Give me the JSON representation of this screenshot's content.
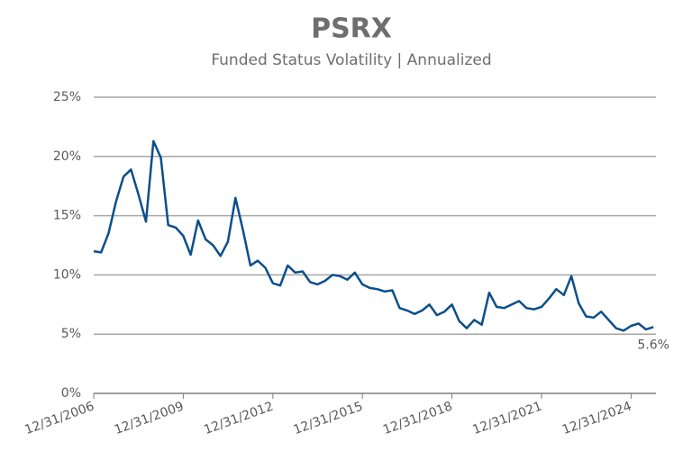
{
  "chart_data": {
    "type": "line",
    "title": "PSRX",
    "subtitle": "Funded Status Volatility | Annualized",
    "x": [
      "12/31/2006",
      "3/31/2007",
      "6/30/2007",
      "9/30/2007",
      "12/31/2007",
      "3/31/2008",
      "6/30/2008",
      "9/30/2008",
      "12/31/2008",
      "3/31/2009",
      "6/30/2009",
      "9/30/2009",
      "12/31/2009",
      "3/31/2010",
      "6/30/2010",
      "9/30/2010",
      "12/31/2010",
      "3/31/2011",
      "6/30/2011",
      "9/30/2011",
      "12/31/2011",
      "3/31/2012",
      "6/30/2012",
      "9/30/2012",
      "12/31/2012",
      "3/31/2013",
      "6/30/2013",
      "9/30/2013",
      "12/31/2013",
      "3/31/2014",
      "6/30/2014",
      "9/30/2014",
      "12/31/2014",
      "3/31/2015",
      "6/30/2015",
      "9/30/2015",
      "12/31/2015",
      "3/31/2016",
      "6/30/2016",
      "9/30/2016",
      "12/31/2016",
      "3/31/2017",
      "6/30/2017",
      "9/30/2017",
      "12/31/2017",
      "3/31/2018",
      "6/30/2018",
      "9/30/2018",
      "12/31/2018",
      "3/31/2019",
      "6/30/2019",
      "9/30/2019",
      "12/31/2019",
      "3/31/2020",
      "6/30/2020",
      "9/30/2020",
      "12/31/2020",
      "3/31/2021",
      "6/30/2021",
      "9/30/2021",
      "12/31/2021",
      "3/31/2022",
      "6/30/2022",
      "9/30/2022",
      "12/31/2022",
      "3/31/2023",
      "6/30/2023",
      "9/30/2023",
      "12/31/2023",
      "3/31/2024",
      "6/30/2024",
      "9/30/2024",
      "12/31/2024",
      "3/31/2025",
      "6/30/2025",
      "9/30/2025"
    ],
    "series": [
      {
        "name": "PSRX",
        "color": "#0b4f8a",
        "values": [
          12.0,
          11.9,
          13.5,
          16.2,
          18.3,
          18.9,
          16.8,
          14.5,
          21.3,
          19.9,
          14.2,
          14.0,
          13.3,
          11.7,
          14.6,
          13.0,
          12.5,
          11.6,
          12.8,
          16.5,
          13.8,
          10.8,
          11.2,
          10.6,
          9.3,
          9.1,
          10.8,
          10.2,
          10.3,
          9.4,
          9.2,
          9.5,
          10.0,
          9.9,
          9.6,
          10.2,
          9.2,
          8.9,
          8.8,
          8.6,
          8.7,
          7.2,
          7.0,
          6.7,
          7.0,
          7.5,
          6.6,
          6.9,
          7.5,
          6.1,
          5.5,
          6.2,
          5.8,
          8.5,
          7.3,
          7.2,
          7.5,
          7.8,
          7.2,
          7.1,
          7.3,
          8.0,
          8.8,
          8.3,
          9.9,
          7.6,
          6.5,
          6.4,
          6.9,
          6.2,
          5.5,
          5.3,
          5.7,
          5.9,
          5.4,
          5.6
        ],
        "value_labels": [
          null,
          null,
          null,
          null,
          null,
          null,
          null,
          null,
          null,
          null,
          null,
          null,
          null,
          null,
          null,
          null,
          null,
          null,
          null,
          null,
          null,
          null,
          null,
          null,
          null,
          null,
          null,
          null,
          null,
          null,
          null,
          null,
          null,
          null,
          null,
          null,
          null,
          null,
          null,
          null,
          null,
          null,
          null,
          null,
          null,
          null,
          null,
          null,
          null,
          null,
          null,
          null,
          null,
          null,
          null,
          null,
          null,
          null,
          null,
          null,
          null,
          null,
          null,
          null,
          null,
          null,
          null,
          null,
          null,
          null,
          null,
          null,
          null,
          null,
          null,
          "5.6%"
        ]
      }
    ],
    "xlim": [
      "12/31/2006",
      "10/31/2025"
    ],
    "xticks": [
      "12/31/2006",
      "12/31/2009",
      "12/31/2012",
      "12/31/2015",
      "12/31/2018",
      "12/31/2021",
      "12/31/2024"
    ],
    "ylim": [
      0,
      25
    ],
    "yticks": [
      {
        "value": 0,
        "label": "0%"
      },
      {
        "value": 5,
        "label": "5%"
      },
      {
        "value": 10,
        "label": "10%"
      },
      {
        "value": 15,
        "label": "15%"
      },
      {
        "value": 20,
        "label": "20%"
      },
      {
        "value": 25,
        "label": "25%"
      }
    ],
    "grid": true
  }
}
